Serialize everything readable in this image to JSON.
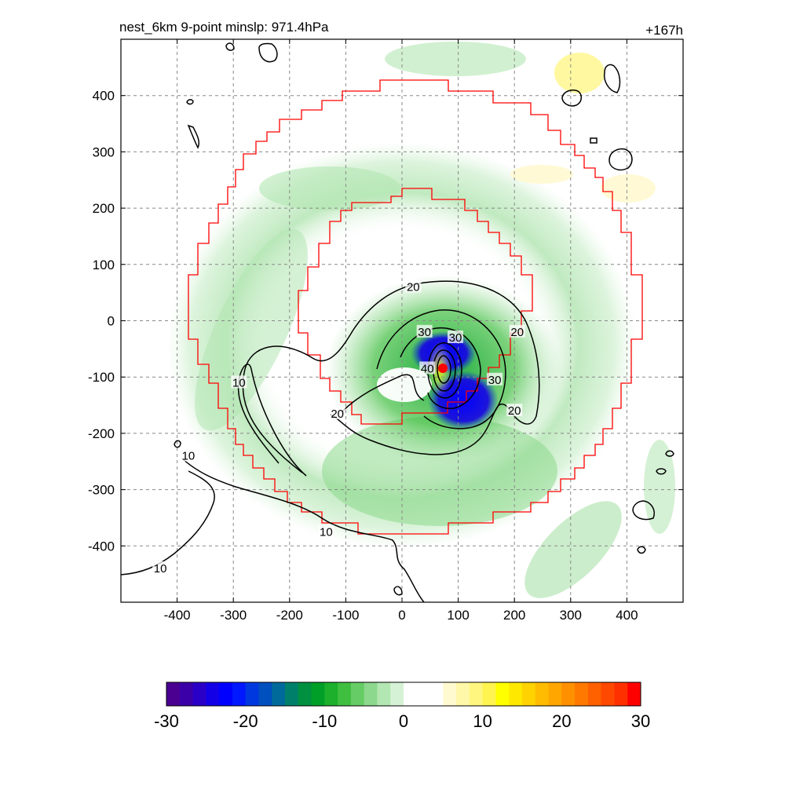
{
  "chart_data": {
    "type": "heatmap",
    "title_left": "nest_6km  9-point minslp: 971.4hPa",
    "title_right": "+167h",
    "xlim": [
      -500,
      500
    ],
    "ylim": [
      -500,
      500
    ],
    "x_ticks": [
      -400,
      -300,
      -200,
      -100,
      0,
      100,
      200,
      300,
      400
    ],
    "y_ticks": [
      400,
      300,
      200,
      100,
      0,
      -100,
      -200,
      -300,
      -400
    ],
    "x_tick_labels": [
      "-400",
      "-300",
      "-200",
      "-100",
      "0",
      "100",
      "200",
      "300",
      "400"
    ],
    "y_tick_labels": [
      "400",
      "300",
      "200",
      "100",
      "0",
      "-100",
      "-200",
      "-300",
      "-400"
    ],
    "grid": true,
    "storm_center": [
      75,
      -85
    ],
    "field_range": [
      -30,
      30
    ],
    "colorbar": {
      "ticks": [
        "-30",
        "-20",
        "-10",
        "0",
        "10",
        "20",
        "30"
      ],
      "colors": [
        "#4a0090",
        "#3c00a8",
        "#2a00c8",
        "#1400e6",
        "#0000ff",
        "#0018ff",
        "#0038e0",
        "#0050c0",
        "#006a9a",
        "#00806a",
        "#009040",
        "#00a028",
        "#1cb02c",
        "#40be40",
        "#66cc66",
        "#8cd88c",
        "#b2e6b2",
        "#d6f2d6",
        "#ffffff",
        "#ffffff",
        "#ffffff",
        "#fffad0",
        "#fff8a8",
        "#fff680",
        "#fff450",
        "#ffff00",
        "#ffe800",
        "#ffd200",
        "#ffbc00",
        "#ffa600",
        "#ff9000",
        "#ff7800",
        "#ff6000",
        "#ff4800",
        "#ff3000",
        "#ff0000"
      ]
    },
    "contours": [
      {
        "label": "20",
        "label_positions": [
          [
            20,
            60
          ],
          [
            205,
            -20
          ],
          [
            -115,
            -165
          ],
          [
            200,
            -160
          ]
        ]
      },
      {
        "label": "30",
        "label_positions": [
          [
            165,
            -105
          ],
          [
            40,
            -20
          ],
          [
            95,
            -30
          ]
        ]
      },
      {
        "label": "40",
        "label_positions": [
          [
            45,
            -85
          ]
        ]
      },
      {
        "label": "10",
        "label_positions": [
          [
            -290,
            -110
          ],
          [
            -380,
            -240
          ],
          [
            -135,
            -375
          ],
          [
            -430,
            -440
          ]
        ]
      }
    ],
    "red_boundaries": {
      "outer": {
        "x_extent": [
          -380,
          425
        ],
        "y_extent": [
          -375,
          425
        ]
      },
      "inner": {
        "x_extent": [
          -180,
          235
        ],
        "y_extent": [
          -175,
          235
        ]
      }
    }
  }
}
